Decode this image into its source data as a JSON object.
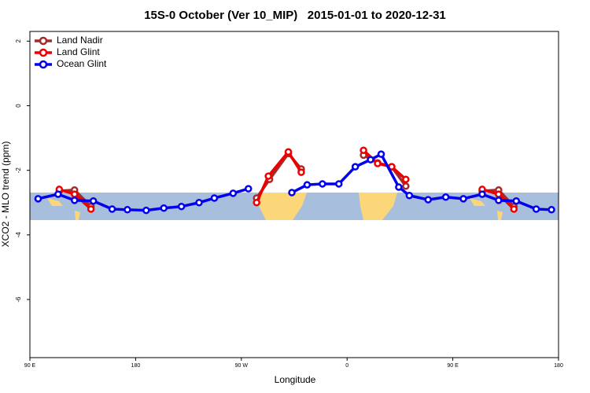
{
  "chart_data": {
    "type": "line",
    "title": "15S-0 October (Ver 10_MIP)   2015-01-01 to 2020-12-31",
    "x_label": "Longitude",
    "y_label": "XCO2 - MLO trend (ppm)",
    "xlim": [
      90,
      540
    ],
    "ylim": [
      -7.8,
      2.3
    ],
    "xticks": [
      {
        "value": 90,
        "label": "90 E"
      },
      180,
      {
        "value": 270,
        "label": "90 W"
      },
      {
        "value": 360,
        "label": "0"
      },
      {
        "value": 450,
        "label": "90 E"
      },
      {
        "value": 540,
        "label": "180"
      }
    ],
    "yticks": [
      2,
      0,
      -2,
      -4,
      -6
    ],
    "legend": "top-left",
    "series": [
      {
        "name": "Land Nadir",
        "color": "#a52a2a",
        "x": [
          115,
          128,
          142,
          null,
          283,
          294,
          310,
          321,
          null,
          374,
          386,
          398,
          410,
          null,
          475,
          489,
          502
        ],
        "values": [
          -2.64,
          -2.61,
          -3.12,
          null,
          -2.86,
          -2.28,
          -1.48,
          -1.96,
          null,
          -1.53,
          -1.77,
          -1.89,
          -2.49,
          null,
          -2.64,
          -2.61,
          -3.12
        ]
      },
      {
        "name": "Land Glint",
        "color": "#ee0000",
        "x": [
          115,
          128,
          142,
          null,
          283,
          293,
          310,
          321,
          null,
          374,
          386,
          398,
          410,
          null,
          475,
          489,
          502
        ],
        "values": [
          -2.59,
          -2.74,
          -3.2,
          null,
          -3.0,
          -2.18,
          -1.43,
          -2.06,
          null,
          -1.38,
          -1.79,
          -1.89,
          -2.28,
          null,
          -2.59,
          -2.74,
          -3.2
        ]
      },
      {
        "name": "Ocean Glint",
        "color": "#0000ee",
        "x": [
          97,
          114,
          128,
          144,
          160,
          173,
          189,
          204,
          219,
          234,
          247,
          263,
          276,
          null,
          313,
          326,
          339,
          353,
          367,
          380,
          389,
          404,
          413,
          429,
          444,
          459,
          475,
          489,
          504,
          521,
          534
        ],
        "values": [
          -2.88,
          -2.74,
          -2.93,
          -2.95,
          -3.2,
          -3.22,
          -3.24,
          -3.17,
          -3.12,
          -3.0,
          -2.86,
          -2.71,
          -2.57,
          null,
          -2.69,
          -2.45,
          -2.42,
          -2.42,
          -1.89,
          -1.67,
          -1.5,
          -2.52,
          -2.78,
          -2.91,
          -2.83,
          -2.88,
          -2.74,
          -2.93,
          -2.95,
          -3.2,
          -3.22
        ]
      }
    ]
  }
}
